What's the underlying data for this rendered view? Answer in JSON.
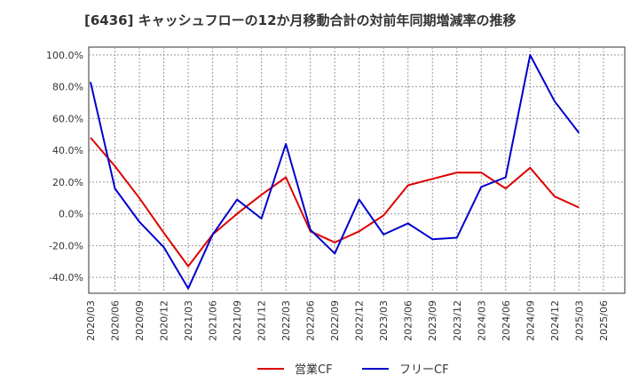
{
  "chart_data": {
    "type": "line",
    "title": "[6436]  キャッシュフローの12か月移動合計の対前年同期増減率の推移",
    "xlabel": "",
    "ylabel": "",
    "ylim": [
      -50,
      105
    ],
    "y_ticks": [
      100,
      80,
      60,
      40,
      20,
      0,
      -20,
      -40
    ],
    "y_tick_labels": [
      "100.0%",
      "80.0%",
      "60.0%",
      "40.0%",
      "20.0%",
      "0.0%",
      "-20.0%",
      "-40.0%"
    ],
    "categories": [
      "2020/03",
      "2020/06",
      "2020/09",
      "2020/12",
      "2021/03",
      "2021/06",
      "2021/09",
      "2021/12",
      "2022/03",
      "2022/06",
      "2022/09",
      "2022/12",
      "2023/03",
      "2023/06",
      "2023/09",
      "2023/12",
      "2024/03",
      "2024/06",
      "2024/09",
      "2024/12",
      "2025/03",
      "2025/06"
    ],
    "grid": true,
    "legend_position": "bottom",
    "series": [
      {
        "name": "営業CF",
        "color": "#dd0000",
        "values": [
          48,
          30,
          10,
          -12,
          -33,
          -13,
          0,
          12,
          23,
          -11,
          -18,
          -11,
          -1,
          18,
          22,
          26,
          26,
          16,
          29,
          11,
          4,
          null
        ]
      },
      {
        "name": "フリーCF",
        "color": "#0000cc",
        "values": [
          83,
          16,
          -5,
          -21,
          -47,
          -13,
          9,
          -3,
          44,
          -10,
          -25,
          9,
          -13,
          -6,
          -16,
          -15,
          17,
          23,
          100,
          71,
          51,
          null
        ]
      }
    ]
  }
}
